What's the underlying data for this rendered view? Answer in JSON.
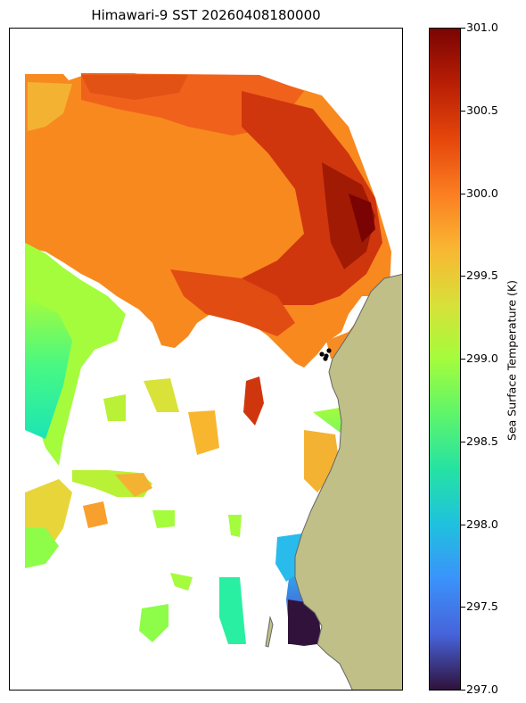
{
  "map": {
    "title": "Himawari-9 SST 20260408180000",
    "land_color": "#bfbf87",
    "coast_color": "#666666"
  },
  "colorbar": {
    "label": "Sea Surface Temperature (K)",
    "colormap": "turbo",
    "range": [
      297.0,
      301.0
    ],
    "ticks": [
      "301.0",
      "300.5",
      "300.0",
      "299.5",
      "299.0",
      "298.5",
      "298.0",
      "297.5",
      "297.0"
    ]
  }
}
